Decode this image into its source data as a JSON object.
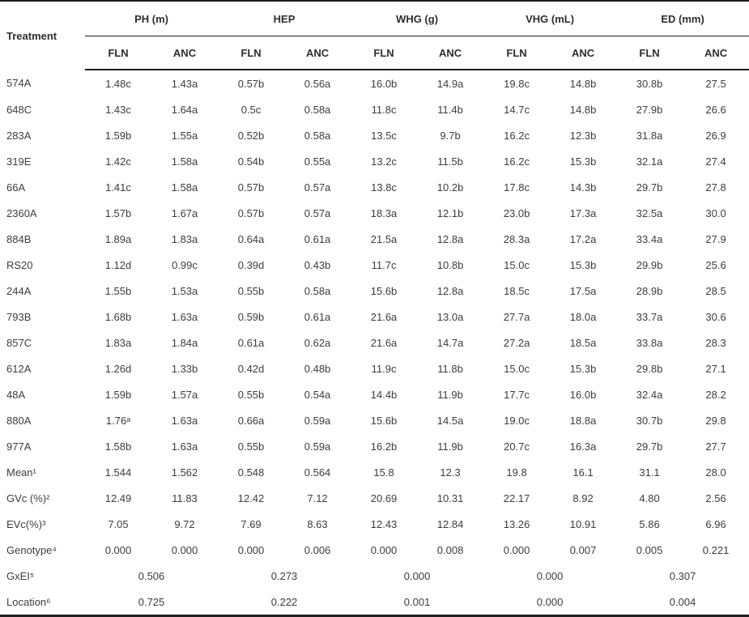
{
  "table": {
    "corner_label": "Treatment",
    "groups": [
      {
        "label": "PH (m)"
      },
      {
        "label": "HEP"
      },
      {
        "label": "WHG (g)"
      },
      {
        "label": "VHG (mL)"
      },
      {
        "label": "ED (mm)"
      }
    ],
    "sub_labels": [
      "FLN",
      "ANC",
      "FLN",
      "ANC",
      "FLN",
      "ANC",
      "FLN",
      "ANC",
      "FLN",
      "ANC"
    ],
    "rows": [
      {
        "label": "574A",
        "values": [
          "1.48c",
          "1.43a",
          "0.57b",
          "0.56a",
          "16.0b",
          "14.9a",
          "19.8c",
          "14.8b",
          "30.8b",
          "27.5"
        ]
      },
      {
        "label": "648C",
        "values": [
          "1.43c",
          "1.64a",
          "0.5c",
          "0.58a",
          "11.8c",
          "11.4b",
          "14.7c",
          "14.8b",
          "27.9b",
          "26.6"
        ]
      },
      {
        "label": "283A",
        "values": [
          "1.59b",
          "1.55a",
          "0.52b",
          "0.58a",
          "13.5c",
          "9.7b",
          "16.2c",
          "12.3b",
          "31.8a",
          "26.9"
        ]
      },
      {
        "label": "319E",
        "values": [
          "1.42c",
          "1.58a",
          "0.54b",
          "0.55a",
          "13.2c",
          "11.5b",
          "16.2c",
          "15.3b",
          "32.1a",
          "27.4"
        ]
      },
      {
        "label": "66A",
        "values": [
          "1.41c",
          "1.58a",
          "0.57b",
          "0.57a",
          "13.8c",
          "10.2b",
          "17.8c",
          "14.3b",
          "29.7b",
          "27.8"
        ]
      },
      {
        "label": "2360A",
        "values": [
          "1.57b",
          "1.67a",
          "0.57b",
          "0.57a",
          "18.3a",
          "12.1b",
          "23.0b",
          "17.3a",
          "32.5a",
          "30.0"
        ]
      },
      {
        "label": "884B",
        "values": [
          "1.89a",
          "1.83a",
          "0.64a",
          "0.61a",
          "21.5a",
          "12.8a",
          "28.3a",
          "17.2a",
          "33.4a",
          "27.9"
        ]
      },
      {
        "label": "RS20",
        "values": [
          "1.12d",
          "0.99c",
          "0.39d",
          "0.43b",
          "11.7c",
          "10.8b",
          "15.0c",
          "15.3b",
          "29.9b",
          "25.6"
        ]
      },
      {
        "label": "244A",
        "values": [
          "1.55b",
          "1.53a",
          "0.55b",
          "0.58a",
          "15.6b",
          "12.8a",
          "18.5c",
          "17.5a",
          "28.9b",
          "28.5"
        ]
      },
      {
        "label": "793B",
        "values": [
          "1.68b",
          "1.63a",
          "0.59b",
          "0.61a",
          "21.6a",
          "13.0a",
          "27.7a",
          "18.0a",
          "33.7a",
          "30.6"
        ]
      },
      {
        "label": "857C",
        "values": [
          "1.83a",
          "1.84a",
          "0.61a",
          "0.62a",
          "21.6a",
          "14.7a",
          "27.2a",
          "18.5a",
          "33.8a",
          "28.3"
        ]
      },
      {
        "label": "612A",
        "values": [
          "1.26d",
          "1.33b",
          "0.42d",
          "0.48b",
          "11.9c",
          "11.8b",
          "15.0c",
          "15.3b",
          "29.8b",
          "27.1"
        ]
      },
      {
        "label": "48A",
        "values": [
          "1.59b",
          "1.57a",
          "0.55b",
          "0.54a",
          "14.4b",
          "11.9b",
          "17.7c",
          "16.0b",
          "32.4a",
          "28.2"
        ]
      },
      {
        "label": "880A",
        "values": [
          "1.76ᵃ",
          "1.63a",
          "0.66a",
          "0.59a",
          "15.6b",
          "14.5a",
          "19.0c",
          "18.8a",
          "30.7b",
          "29.8"
        ]
      },
      {
        "label": "977A",
        "values": [
          "1.58b",
          "1.63a",
          "0.55b",
          "0.59a",
          "16.2b",
          "11.9b",
          "20.7c",
          "16.3a",
          "29.7b",
          "27.7"
        ]
      },
      {
        "label": "Mean¹",
        "values": [
          "1.544",
          "1.562",
          "0.548",
          "0.564",
          "15.8",
          "12.3",
          "19.8",
          "16.1",
          "31.1",
          "28.0"
        ]
      },
      {
        "label": "GVc (%)²",
        "values": [
          "12.49",
          "11.83",
          "12.42",
          "7.12",
          "20.69",
          "10.31",
          "22.17",
          "8.92",
          "4.80",
          "2.56"
        ]
      },
      {
        "label": "EVc(%)³",
        "values": [
          "7.05",
          "9.72",
          "7.69",
          "8.63",
          "12.43",
          "12.84",
          "13.26",
          "10.91",
          "5.86",
          "6.96"
        ]
      },
      {
        "label": "Genotype⁴",
        "values": [
          "0.000",
          "0.000",
          "0.000",
          "0.006",
          "0.000",
          "0.008",
          "0.000",
          "0.007",
          "0.005",
          "0.221"
        ]
      }
    ],
    "span_rows": [
      {
        "label": "GxEI⁵",
        "values": [
          "0.506",
          "0.273",
          "0.000",
          "0.000",
          "0.307"
        ]
      },
      {
        "label": "Location⁶",
        "values": [
          "0.725",
          "0.222",
          "0.001",
          "0.000",
          "0.004"
        ]
      }
    ]
  },
  "colors": {
    "rule": "#1f1f1f",
    "text": "#3d3d3d",
    "background": "#ffffff"
  }
}
